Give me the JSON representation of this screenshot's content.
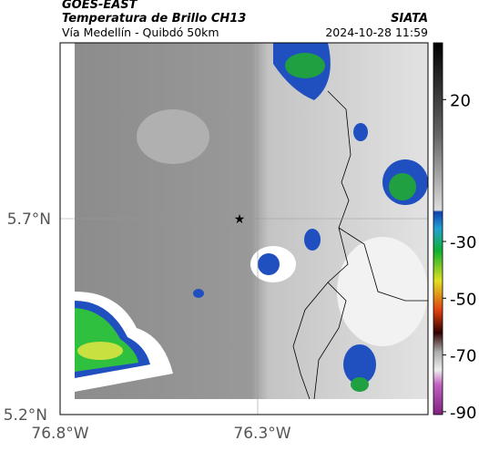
{
  "header": {
    "title": "GOES-EAST",
    "subtitle": "Temperatura de Brillo CH13",
    "location": "Vía Medellín - Quibdó 50km",
    "source": "SIATA",
    "datetime": "2024-10-28 11:59"
  },
  "map": {
    "lat_labels": [
      "5.7°N",
      "5.2°N"
    ],
    "lon_labels": [
      "76.8°W",
      "76.3°W"
    ]
  },
  "colorbar": {
    "range": [
      -91,
      40
    ],
    "ticks": [
      20,
      -30,
      -50,
      -70,
      -90
    ]
  }
}
